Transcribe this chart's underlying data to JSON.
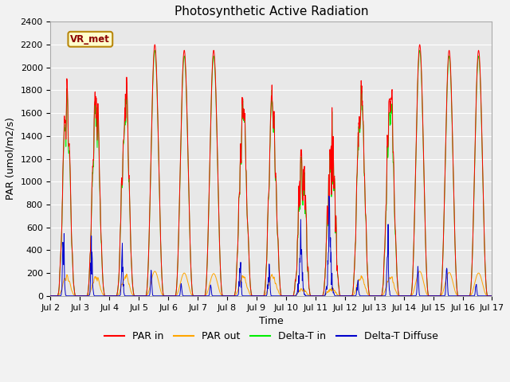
{
  "title": "Photosynthetic Active Radiation",
  "xlabel": "Time",
  "ylabel": "PAR (umol/m2/s)",
  "ylim": [
    0,
    2400
  ],
  "label_text": "VR_met",
  "plot_bg_color": "#e8e8e8",
  "fig_bg_color": "#f2f2f2",
  "line_colors": {
    "par_in": "#ff0000",
    "par_out": "#ffa500",
    "delta_t_in": "#00ee00",
    "delta_t_diffuse": "#0000cc"
  },
  "legend_labels": [
    "PAR in",
    "PAR out",
    "Delta-T in",
    "Delta-T Diffuse"
  ],
  "x_tick_labels": [
    "Jul 2",
    "Jul 3",
    "Jul 4",
    "Jul 5",
    "Jul 6",
    "Jul 7",
    "Jul 8",
    "Jul 9",
    "Jul 10",
    "Jul 11",
    "Jul 12",
    "Jul 13",
    "Jul 14",
    "Jul 15",
    "Jul 16",
    "Jul 17"
  ],
  "x_tick_positions": [
    2,
    3,
    4,
    5,
    6,
    7,
    8,
    9,
    10,
    11,
    12,
    13,
    14,
    15,
    16,
    17
  ],
  "n_days": 15,
  "start_day": 2,
  "grid_color": "#ffffff",
  "title_fontsize": 11,
  "axis_fontsize": 9,
  "tick_fontsize": 8,
  "legend_fontsize": 9,
  "yticks": [
    0,
    200,
    400,
    600,
    800,
    1000,
    1200,
    1400,
    1600,
    1800,
    2000,
    2200,
    2400
  ]
}
